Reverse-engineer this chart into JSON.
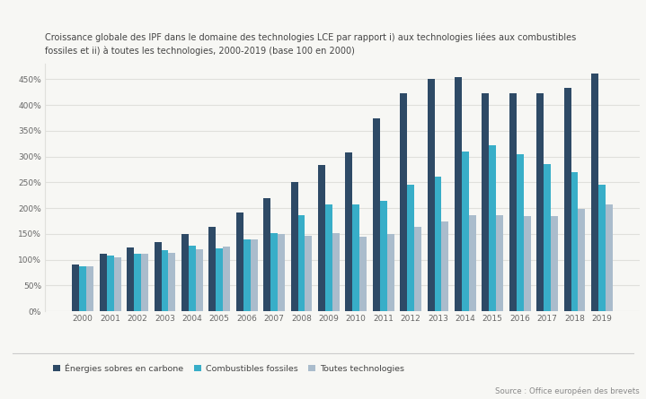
{
  "title_line1": "Croissance globale des IPF dans le domaine des technologies LCE par rapport i) aux technologies liées aux combustibles",
  "title_line2": "fossiles et ii) à toutes les technologies, 2000-2019 (base 100 en 2000)",
  "source": "Source : Office européen des brevets",
  "years": [
    2000,
    2001,
    2002,
    2003,
    2004,
    2005,
    2006,
    2007,
    2008,
    2009,
    2010,
    2011,
    2012,
    2013,
    2014,
    2015,
    2016,
    2017,
    2018,
    2019
  ],
  "energies_sobres": [
    90,
    112,
    123,
    135,
    150,
    163,
    192,
    220,
    250,
    283,
    308,
    375,
    423,
    450,
    455,
    423,
    423,
    423,
    433,
    462
  ],
  "combustibles_fossiles": [
    88,
    108,
    111,
    118,
    128,
    122,
    140,
    152,
    186,
    207,
    208,
    215,
    245,
    262,
    310,
    322,
    305,
    285,
    270,
    245
  ],
  "toutes_technologies": [
    88,
    104,
    111,
    114,
    121,
    125,
    140,
    150,
    147,
    152,
    144,
    150,
    163,
    175,
    186,
    187,
    185,
    185,
    198,
    207
  ],
  "color_energies": "#2e4a66",
  "color_combustibles": "#38aec8",
  "color_toutes": "#aabccc",
  "legend_labels": [
    "Énergies sobres en carbone",
    "Combustibles fossiles",
    "Toutes technologies"
  ],
  "ylim": [
    0,
    480
  ],
  "yticks": [
    0,
    50,
    100,
    150,
    200,
    250,
    300,
    350,
    400,
    450
  ],
  "background_color": "#f7f7f4",
  "grid_color": "#e0e0dc",
  "title_color": "#444444",
  "tick_color": "#666666"
}
